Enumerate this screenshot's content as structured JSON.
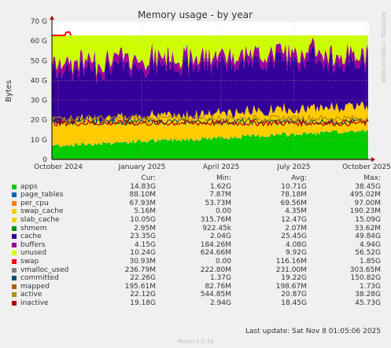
{
  "chart_data": {
    "type": "area",
    "title": "Memory usage - by year",
    "ylabel": "Bytes",
    "side_label": "RRDTOOL / TOBI OETIKER",
    "x_ticks": [
      "October 2024",
      "January 2025",
      "April 2025",
      "July 2025",
      "October 2025"
    ],
    "y_ticks": [
      "0",
      "10 G",
      "20 G",
      "30 G",
      "40 G",
      "50 G",
      "60 G",
      "70 G"
    ],
    "ylim": [
      0,
      70
    ],
    "y_unit": "GB",
    "grid": true,
    "stacked_approx_gb": {
      "apps": 10.7,
      "page_tables": 0.08,
      "per_cpu": 0.07,
      "swap_cache": 0.004,
      "slab_cache": 12.5,
      "cache": 25.5,
      "buffers": 4.1,
      "unused": 9.9
    },
    "lines_approx_gb": {
      "committed": 19.2,
      "active": 20.9,
      "inactive": 18.5,
      "swap": 0.1
    },
    "total_gb": 62.8,
    "columns": [
      "Cur:",
      "Min:",
      "Avg:",
      "Max:"
    ],
    "legend": [
      {
        "name": "apps",
        "color": "#00cc00",
        "cur": "14.83G",
        "min": "1.62G",
        "avg": "10.71G",
        "max": "38.45G"
      },
      {
        "name": "page_tables",
        "color": "#0066b3",
        "cur": "88.10M",
        "min": "7.87M",
        "avg": "78.18M",
        "max": "495.02M"
      },
      {
        "name": "per_cpu",
        "color": "#ff8000",
        "cur": "67.93M",
        "min": "53.73M",
        "avg": "69.56M",
        "max": "97.00M"
      },
      {
        "name": "swap_cache",
        "color": "#ffcc00",
        "cur": "5.16M",
        "min": "0.00",
        "avg": "4.35M",
        "max": "190.23M"
      },
      {
        "name": "slab_cache",
        "color": "#ffcc00",
        "cur": "10.05G",
        "min": "315.76M",
        "avg": "12.47G",
        "max": "15.09G"
      },
      {
        "name": "shmem",
        "color": "#008f00",
        "cur": "2.95M",
        "min": "922.45k",
        "avg": "2.07M",
        "max": "33.62M"
      },
      {
        "name": "cache",
        "color": "#330099",
        "cur": "23.35G",
        "min": "2.04G",
        "avg": "25.45G",
        "max": "49.84G"
      },
      {
        "name": "buffers",
        "color": "#990099",
        "cur": "4.15G",
        "min": "184.26M",
        "avg": "4.08G",
        "max": "4.94G"
      },
      {
        "name": "unused",
        "color": "#ccff00",
        "cur": "10.24G",
        "min": "624.66M",
        "avg": "9.92G",
        "max": "56.52G"
      },
      {
        "name": "swap",
        "color": "#ff0000",
        "cur": "30.93M",
        "min": "0.00",
        "avg": "116.16M",
        "max": "1.85G"
      },
      {
        "name": "vmalloc_used",
        "color": "#808080",
        "cur": "236.79M",
        "min": "222.80M",
        "avg": "231.00M",
        "max": "303.65M"
      },
      {
        "name": "committed",
        "color": "#00516e",
        "cur": "22.26G",
        "min": "1.37G",
        "avg": "19.22G",
        "max": "150.82G"
      },
      {
        "name": "mapped",
        "color": "#b35a00",
        "cur": "195.61M",
        "min": "82.76M",
        "avg": "198.67M",
        "max": "1.73G"
      },
      {
        "name": "active",
        "color": "#b38f00",
        "cur": "22.12G",
        "min": "544.85M",
        "avg": "20.87G",
        "max": "38.28G"
      },
      {
        "name": "inactive",
        "color": "#b30000",
        "cur": "19.18G",
        "min": "2.94G",
        "avg": "18.45G",
        "max": "45.73G"
      }
    ]
  },
  "footer": {
    "last_update": "Last update:  Sat Nov  8 01:05:06 2025",
    "munin": "Munin 2.0.73"
  }
}
